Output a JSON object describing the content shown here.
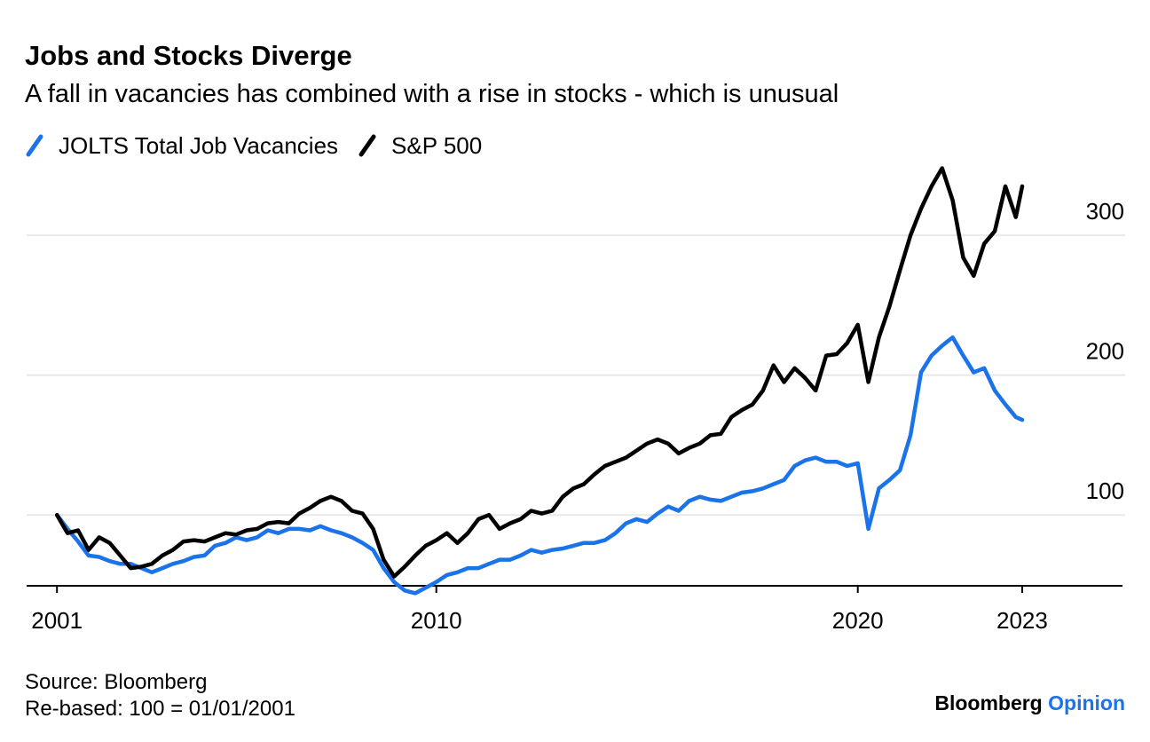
{
  "chart_data": {
    "type": "line",
    "title": "Jobs and Stocks Diverge",
    "subtitle": "A fall in vacancies has combined with a rise in stocks - which is unusual",
    "source": "Source: Bloomberg",
    "note": "Re-based: 100 = 01/01/2001",
    "logo": {
      "brand": "Bloomberg",
      "section": "Opinion"
    },
    "x": [
      2001,
      2001.25,
      2001.5,
      2001.75,
      2002,
      2002.25,
      2002.5,
      2002.75,
      2003,
      2003.25,
      2003.5,
      2003.75,
      2004,
      2004.25,
      2004.5,
      2004.75,
      2005,
      2005.25,
      2005.5,
      2005.75,
      2006,
      2006.25,
      2006.5,
      2006.75,
      2007,
      2007.25,
      2007.5,
      2007.75,
      2008,
      2008.25,
      2008.5,
      2008.75,
      2009,
      2009.25,
      2009.5,
      2009.75,
      2010,
      2010.25,
      2010.5,
      2010.75,
      2011,
      2011.25,
      2011.5,
      2011.75,
      2012,
      2012.25,
      2012.5,
      2012.75,
      2013,
      2013.25,
      2013.5,
      2013.75,
      2014,
      2014.25,
      2014.5,
      2014.75,
      2015,
      2015.25,
      2015.5,
      2015.75,
      2016,
      2016.25,
      2016.5,
      2016.75,
      2017,
      2017.25,
      2017.5,
      2017.75,
      2018,
      2018.25,
      2018.5,
      2018.75,
      2019,
      2019.25,
      2019.5,
      2019.75,
      2020,
      2020.25,
      2020.5,
      2020.75,
      2021,
      2021.25,
      2021.5,
      2021.75,
      2022,
      2022.25,
      2022.5,
      2022.75,
      2023,
      2023.25,
      2023.5,
      2023.75,
      2023.9
    ],
    "series": [
      {
        "name": "JOLTS Total Job Vacancies",
        "color": "#1a73e8",
        "values": [
          100,
          90,
          81,
          71,
          70,
          67,
          65,
          65,
          62,
          59,
          62,
          65,
          67,
          70,
          71,
          78,
          80,
          84,
          82,
          84,
          89,
          87,
          90,
          90,
          89,
          92,
          89,
          87,
          84,
          80,
          75,
          62,
          52,
          46,
          44,
          48,
          52,
          57,
          59,
          62,
          62,
          65,
          68,
          68,
          71,
          75,
          73,
          75,
          76,
          78,
          80,
          80,
          82,
          87,
          94,
          97,
          95,
          101,
          106,
          103,
          110,
          113,
          111,
          110,
          113,
          116,
          117,
          119,
          122,
          125,
          135,
          139,
          141,
          138,
          138,
          135,
          137,
          90,
          119,
          125,
          132,
          157,
          202,
          214,
          221,
          227,
          214,
          202,
          205,
          189,
          179,
          170,
          168
        ]
      },
      {
        "name": "S&P 500",
        "color": "#000000",
        "values": [
          100,
          87,
          89,
          75,
          84,
          80,
          71,
          62,
          63,
          65,
          71,
          75,
          81,
          82,
          81,
          84,
          87,
          86,
          89,
          90,
          94,
          95,
          94,
          101,
          105,
          110,
          113,
          110,
          103,
          101,
          90,
          68,
          56,
          63,
          71,
          78,
          82,
          87,
          80,
          87,
          97,
          100,
          90,
          94,
          97,
          103,
          101,
          103,
          113,
          119,
          122,
          129,
          135,
          138,
          141,
          146,
          151,
          154,
          151,
          144,
          148,
          151,
          157,
          158,
          170,
          175,
          179,
          189,
          207,
          195,
          205,
          198,
          189,
          214,
          215,
          223,
          236,
          195,
          227,
          249,
          275,
          300,
          319,
          335,
          348,
          325,
          284,
          271,
          294,
          303,
          335,
          313,
          335
        ]
      }
    ],
    "xlim": [
      2000.28,
      2026.28
    ],
    "xticks": [
      2001,
      2010,
      2020,
      {
        "value": 2023.9,
        "label": "2023"
      }
    ],
    "ylim": [
      43,
      354
    ],
    "yticks": [
      100,
      200,
      300
    ],
    "grid": true
  }
}
